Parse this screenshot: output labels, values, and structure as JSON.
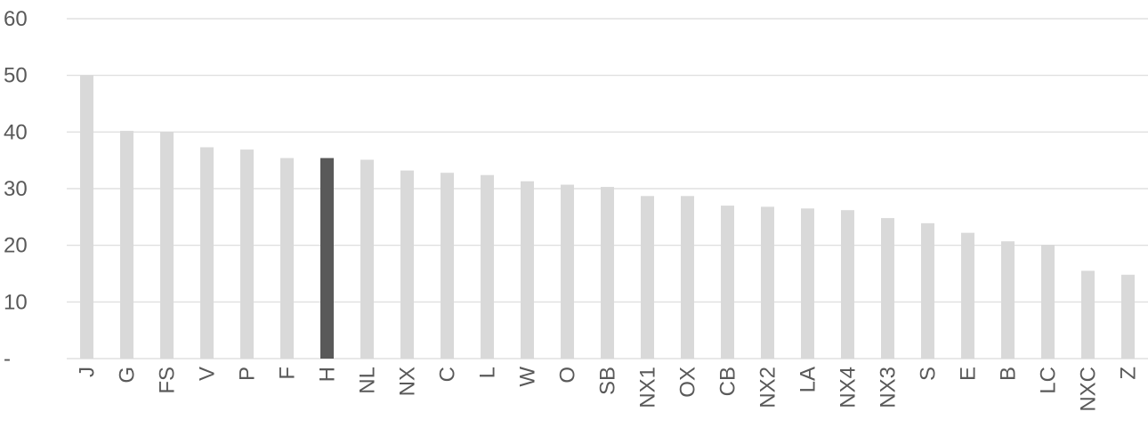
{
  "chart_data": {
    "type": "bar",
    "title": "",
    "xlabel": "",
    "ylabel": "",
    "categories": [
      "J",
      "G",
      "FS",
      "V",
      "P",
      "F",
      "H",
      "NL",
      "NX",
      "C",
      "L",
      "W",
      "O",
      "SB",
      "NX1",
      "OX",
      "CB",
      "NX2",
      "LA",
      "NX4",
      "NX3",
      "S",
      "E",
      "B",
      "LC",
      "NXC",
      "Z"
    ],
    "values": [
      50,
      40.2,
      40,
      37.3,
      36.9,
      35.4,
      35.4,
      35.1,
      33.2,
      32.8,
      32.4,
      31.3,
      30.7,
      30.3,
      28.7,
      28.7,
      27,
      26.8,
      26.5,
      26.2,
      24.8,
      23.9,
      22.2,
      20.7,
      20.1,
      15.5,
      14.8
    ],
    "highlight_category": "H",
    "ylim": [
      0,
      60
    ],
    "yticks": [
      0,
      10,
      20,
      30,
      40,
      50,
      60
    ],
    "ytick_labels": [
      "-",
      "10",
      "20",
      "30",
      "40",
      "50",
      "60"
    ],
    "grid": true,
    "legend": "none",
    "colors": {
      "bar": "#d9d9d9",
      "highlight": "#595959",
      "grid": "#d9d9d9",
      "text": "#595959"
    }
  }
}
